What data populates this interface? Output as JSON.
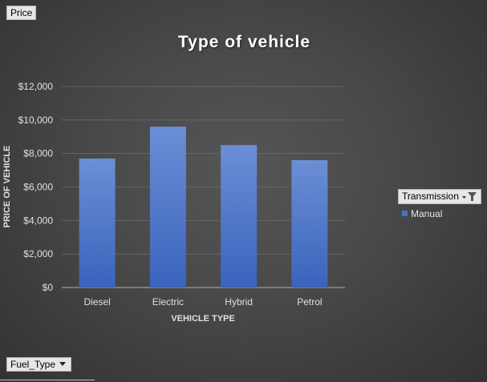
{
  "fields": {
    "value_field": "Price",
    "axis_field": "Fuel_Type",
    "legend_field": "Transmission"
  },
  "chart_data": {
    "type": "bar",
    "title": "Type of vehicle",
    "xlabel": "VEHICLE TYPE",
    "ylabel": "PRICE OF VEHICLE",
    "categories": [
      "Diesel",
      "Electric",
      "Hybrid",
      "Petrol"
    ],
    "series": [
      {
        "name": "Manual",
        "values": [
          7700,
          9600,
          8500,
          7600
        ]
      }
    ],
    "ylim": [
      0,
      12000
    ],
    "yticks": [
      0,
      2000,
      4000,
      6000,
      8000,
      10000,
      12000
    ],
    "ytick_labels": [
      "$0",
      "$2,000",
      "$4,000",
      "$6,000",
      "$8,000",
      "$10,000",
      "$12,000"
    ],
    "grid": true,
    "legend_position": "right",
    "colors": {
      "bar": "#4472c4",
      "gridline": "#6a6a6a",
      "text": "#e0e0e0"
    }
  }
}
